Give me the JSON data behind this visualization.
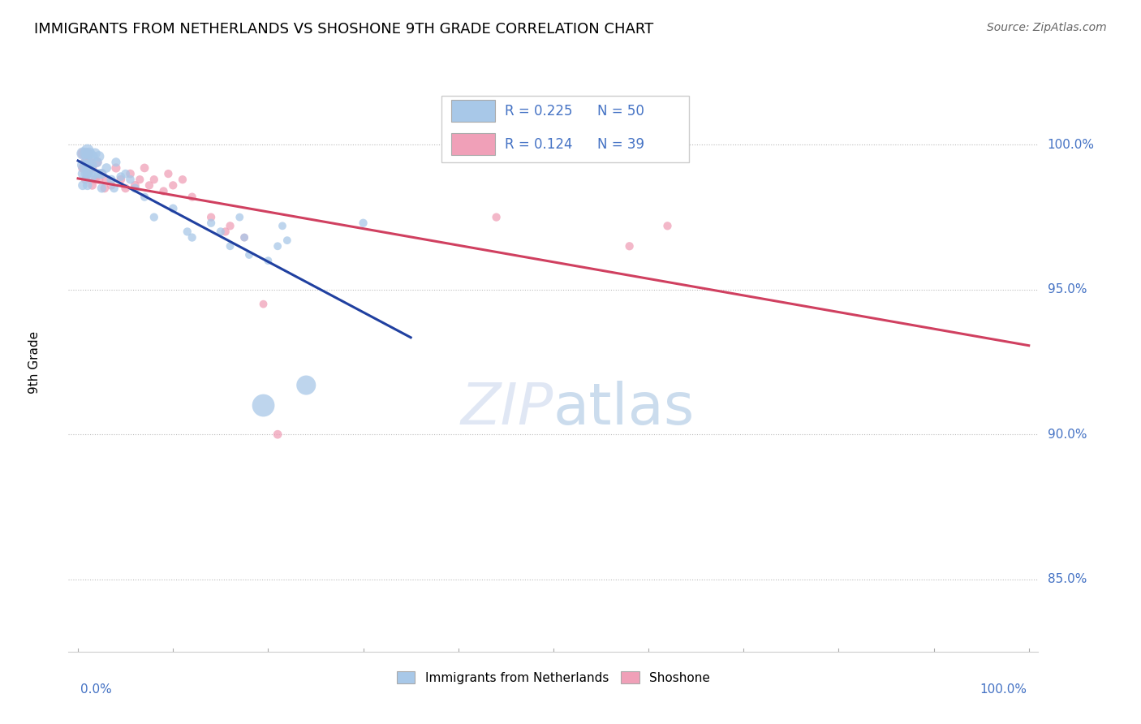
{
  "title": "IMMIGRANTS FROM NETHERLANDS VS SHOSHONE 9TH GRADE CORRELATION CHART",
  "source": "Source: ZipAtlas.com",
  "legend_blue_label": "Immigrants from Netherlands",
  "legend_pink_label": "Shoshone",
  "R_blue": 0.225,
  "N_blue": 50,
  "R_pink": 0.124,
  "N_pink": 39,
  "blue_color": "#a8c8e8",
  "pink_color": "#f0a0b8",
  "blue_line_color": "#2040a0",
  "pink_line_color": "#d04060",
  "ytick_labels": [
    "85.0%",
    "90.0%",
    "95.0%",
    "100.0%"
  ],
  "ytick_values": [
    0.85,
    0.9,
    0.95,
    1.0
  ],
  "ymin": 0.825,
  "ymax": 1.025,
  "xmin": -0.01,
  "xmax": 1.01,
  "blue_x": [
    0.005,
    0.005,
    0.005,
    0.005,
    0.008,
    0.008,
    0.008,
    0.01,
    0.01,
    0.01,
    0.01,
    0.01,
    0.012,
    0.012,
    0.015,
    0.015,
    0.015,
    0.018,
    0.018,
    0.02,
    0.022,
    0.022,
    0.025,
    0.025,
    0.03,
    0.035,
    0.038,
    0.04,
    0.045,
    0.05,
    0.055,
    0.06,
    0.07,
    0.08,
    0.1,
    0.115,
    0.12,
    0.14,
    0.15,
    0.16,
    0.17,
    0.175,
    0.18,
    0.195,
    0.2,
    0.21,
    0.215,
    0.22,
    0.24,
    0.3
  ],
  "blue_y": [
    0.997,
    0.993,
    0.99,
    0.986,
    0.997,
    0.993,
    0.99,
    0.998,
    0.996,
    0.993,
    0.99,
    0.986,
    0.997,
    0.992,
    0.996,
    0.993,
    0.989,
    0.997,
    0.99,
    0.994,
    0.996,
    0.99,
    0.99,
    0.985,
    0.992,
    0.988,
    0.985,
    0.994,
    0.989,
    0.99,
    0.988,
    0.985,
    0.982,
    0.975,
    0.978,
    0.97,
    0.968,
    0.973,
    0.97,
    0.965,
    0.975,
    0.968,
    0.962,
    0.91,
    0.96,
    0.965,
    0.972,
    0.967,
    0.917,
    0.973
  ],
  "blue_sizes": [
    120,
    100,
    80,
    70,
    110,
    90,
    70,
    130,
    110,
    90,
    80,
    70,
    110,
    90,
    100,
    80,
    70,
    90,
    70,
    80,
    90,
    70,
    80,
    65,
    70,
    65,
    60,
    65,
    60,
    60,
    60,
    60,
    55,
    55,
    60,
    55,
    55,
    55,
    55,
    50,
    50,
    50,
    50,
    400,
    50,
    50,
    50,
    50,
    300,
    55
  ],
  "pink_x": [
    0.005,
    0.005,
    0.008,
    0.008,
    0.01,
    0.01,
    0.012,
    0.015,
    0.015,
    0.018,
    0.02,
    0.022,
    0.025,
    0.028,
    0.03,
    0.035,
    0.04,
    0.045,
    0.05,
    0.055,
    0.06,
    0.065,
    0.07,
    0.075,
    0.08,
    0.09,
    0.095,
    0.1,
    0.11,
    0.12,
    0.14,
    0.155,
    0.16,
    0.175,
    0.195,
    0.21,
    0.44,
    0.58,
    0.62
  ],
  "pink_y": [
    0.997,
    0.992,
    0.994,
    0.988,
    0.997,
    0.99,
    0.994,
    0.992,
    0.986,
    0.988,
    0.994,
    0.988,
    0.99,
    0.985,
    0.988,
    0.986,
    0.992,
    0.988,
    0.985,
    0.99,
    0.986,
    0.988,
    0.992,
    0.986,
    0.988,
    0.984,
    0.99,
    0.986,
    0.988,
    0.982,
    0.975,
    0.97,
    0.972,
    0.968,
    0.945,
    0.9,
    0.975,
    0.965,
    0.972
  ],
  "pink_sizes": [
    90,
    70,
    80,
    65,
    90,
    70,
    80,
    70,
    60,
    65,
    75,
    65,
    65,
    60,
    65,
    60,
    65,
    60,
    60,
    60,
    60,
    55,
    60,
    55,
    55,
    55,
    55,
    55,
    55,
    55,
    55,
    55,
    55,
    50,
    50,
    60,
    55,
    55,
    55
  ]
}
